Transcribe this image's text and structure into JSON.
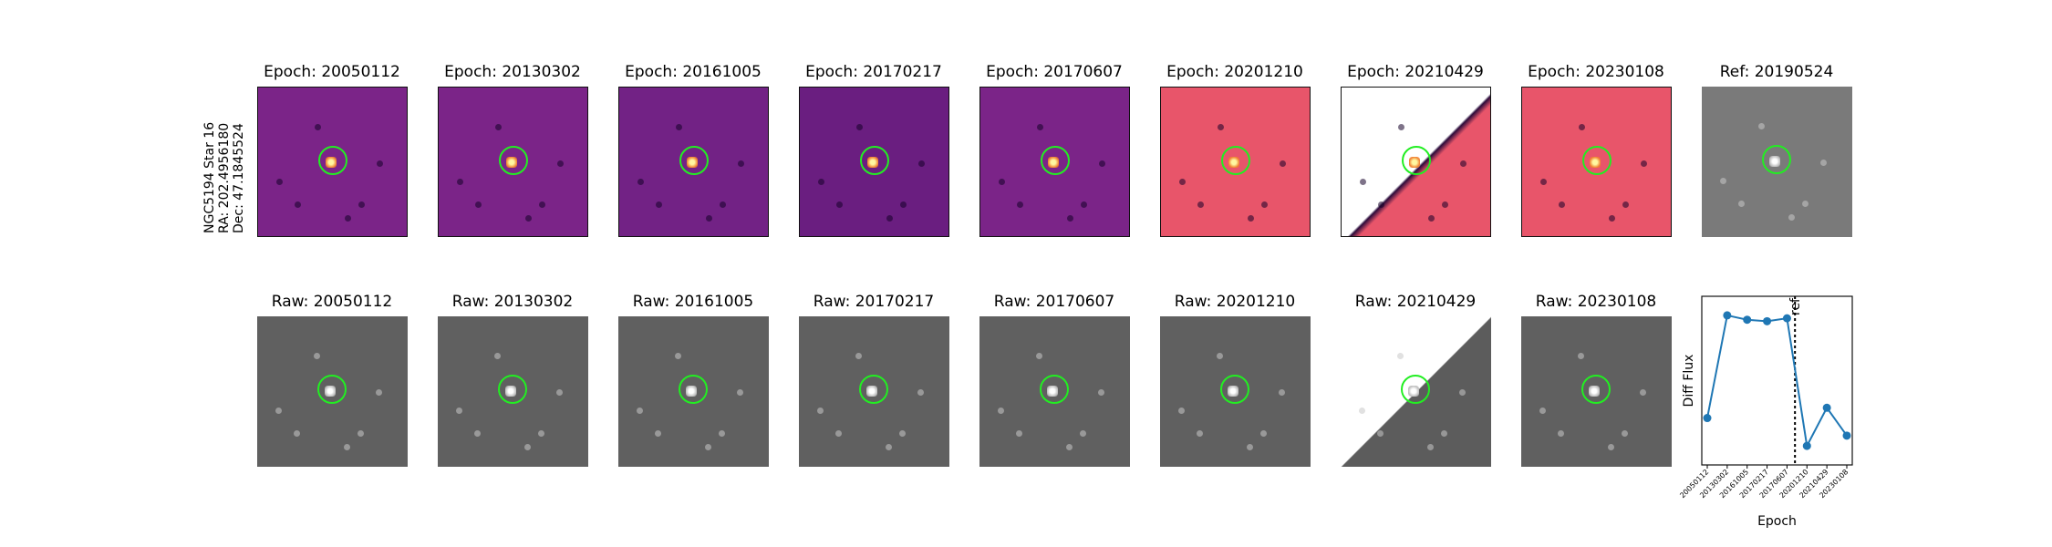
{
  "target": {
    "line1": "NGC5194 Star 16",
    "line2": "RA: 202.4956180",
    "line3": "Dec: 47.1845524"
  },
  "colors": {
    "diff_dark": "#6a1e80",
    "diff_mid": "#7b2488",
    "diff_pink": "#e8556a",
    "raw_gray": "#606060",
    "ref_gray": "#7a7a7a",
    "ring": "#22ee22",
    "line": "#1f77b4"
  },
  "diff_row": [
    {
      "label": "Epoch: 20050112",
      "style": "mid"
    },
    {
      "label": "Epoch: 20130302",
      "style": "mid"
    },
    {
      "label": "Epoch: 20161005",
      "style": "dark"
    },
    {
      "label": "Epoch: 20170217",
      "style": "darker"
    },
    {
      "label": "Epoch: 20170607",
      "style": "mid"
    },
    {
      "label": "Epoch: 20201210",
      "style": "pink"
    },
    {
      "label": "Epoch: 20210429",
      "style": "diagonal-pink"
    },
    {
      "label": "Epoch: 20230108",
      "style": "pink"
    },
    {
      "label": "Ref: 20190524",
      "style": "gray"
    }
  ],
  "raw_row": [
    {
      "label": "Raw: 20050112",
      "style": "gray"
    },
    {
      "label": "Raw: 20130302",
      "style": "gray"
    },
    {
      "label": "Raw: 20161005",
      "style": "gray"
    },
    {
      "label": "Raw: 20170217",
      "style": "gray"
    },
    {
      "label": "Raw: 20170607",
      "style": "gray"
    },
    {
      "label": "Raw: 20201210",
      "style": "gray"
    },
    {
      "label": "Raw: 20210429",
      "style": "diagonal-gray"
    },
    {
      "label": "Raw: 20230108",
      "style": "gray"
    }
  ],
  "chart_data": {
    "type": "line",
    "xlabel": "Epoch",
    "ylabel": "Diff Flux",
    "categories": [
      "20050112",
      "20130302",
      "20161005",
      "20170217",
      "20170607",
      "20201210",
      "20210429",
      "20230108"
    ],
    "values": [
      0.22,
      0.92,
      0.89,
      0.88,
      0.9,
      0.03,
      0.29,
      0.1
    ],
    "ylim": [
      -0.1,
      1.05
    ],
    "ref_marker": {
      "label": "ref",
      "position_between": [
        "20170607",
        "20201210"
      ],
      "fraction": 0.4
    },
    "grid": false
  }
}
